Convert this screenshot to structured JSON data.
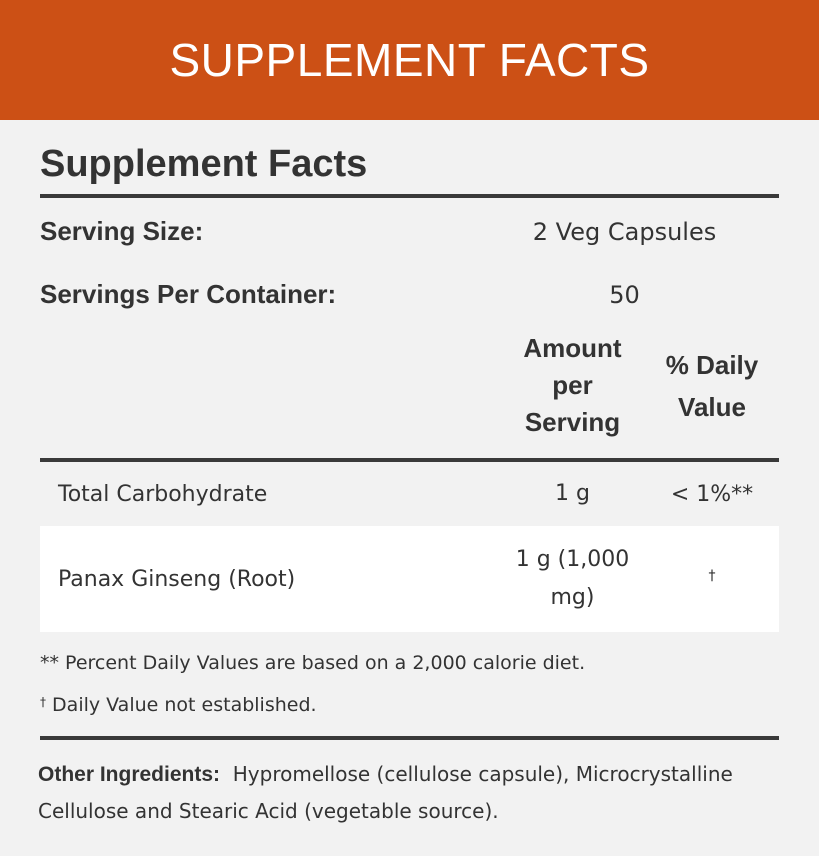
{
  "banner": {
    "title": "SUPPLEMENT FACTS"
  },
  "panel": {
    "heading": "Supplement Facts",
    "serving_size_label": "Serving Size:",
    "serving_size_value": "2 Veg Capsules",
    "servings_per_container_label": "Servings Per Container:",
    "servings_per_container_value": "50",
    "col_amount_line1": "Amount",
    "col_amount_line2": "per",
    "col_amount_line3": "Serving",
    "col_dv_line1": "% Daily",
    "col_dv_line2": "Value",
    "rows": [
      {
        "name": "Total Carbohydrate",
        "amount": "1 g",
        "dv": "< 1%**"
      },
      {
        "name": "Panax Ginseng (Root)",
        "amount_line1": "1 g (1,000",
        "amount_line2": "mg)",
        "dv": "†"
      }
    ],
    "footnote1": "** Percent Daily Values are based on a 2,000 calorie diet.",
    "footnote2_mark": "†",
    "footnote2_text": " Daily Value not established.",
    "other_ingredients_label": "Other Ingredients:",
    "other_ingredients_line1": "Hypromellose (cellulose capsule), Microcrystalline",
    "other_ingredients_line2": "Cellulose and Stearic Acid (vegetable source)."
  },
  "colors": {
    "banner": "#cc5015",
    "background": "#f2f2f2",
    "text": "#333333",
    "rule": "#3a3a3a"
  }
}
